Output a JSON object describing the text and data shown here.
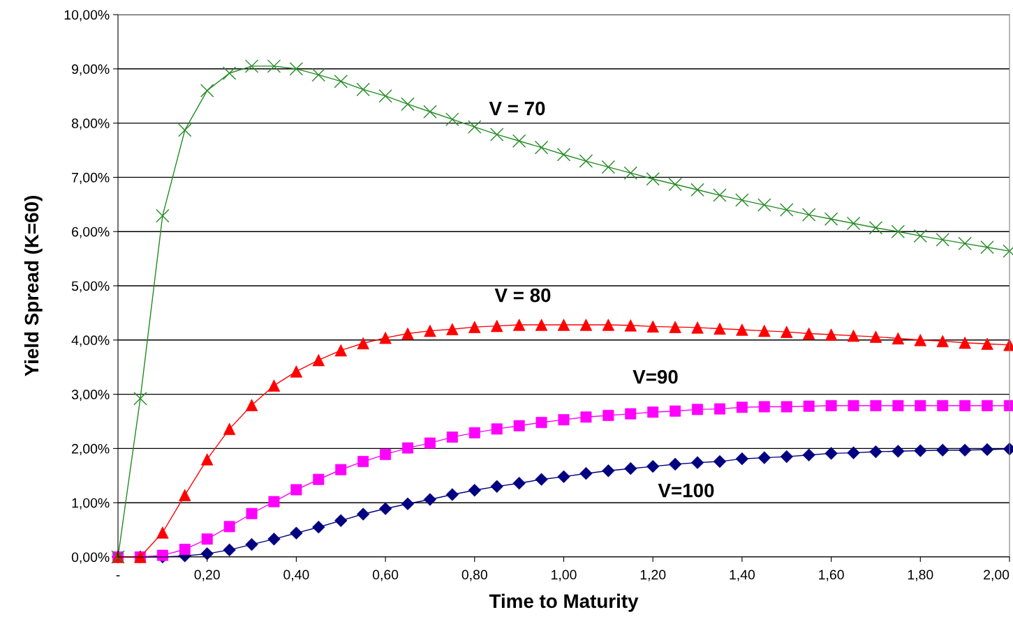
{
  "chart_data": {
    "type": "line",
    "xlabel": "Time to Maturity",
    "ylabel": "Yield Spread (K=60)",
    "x": [
      0,
      0.05,
      0.1,
      0.15,
      0.2,
      0.25,
      0.3,
      0.35,
      0.4,
      0.45,
      0.5,
      0.55,
      0.6,
      0.65,
      0.7,
      0.75,
      0.8,
      0.85,
      0.9,
      0.95,
      1.0,
      1.05,
      1.1,
      1.15,
      1.2,
      1.25,
      1.3,
      1.35,
      1.4,
      1.45,
      1.5,
      1.55,
      1.6,
      1.65,
      1.7,
      1.75,
      1.8,
      1.85,
      1.9,
      1.95,
      2.0
    ],
    "series": [
      {
        "color": "#228b22",
        "marker": "cross",
        "values": [
          0,
          2.92,
          6.29,
          7.87,
          8.6,
          8.92,
          9.05,
          9.05,
          9.0,
          8.89,
          8.77,
          8.62,
          8.5,
          8.35,
          8.21,
          8.07,
          7.93,
          7.79,
          7.67,
          7.55,
          7.42,
          7.3,
          7.19,
          7.08,
          6.97,
          6.87,
          6.77,
          6.67,
          6.58,
          6.49,
          6.4,
          6.31,
          6.23,
          6.15,
          6.07,
          6.0,
          5.92,
          5.85,
          5.78,
          5.71,
          5.64
        ]
      },
      {
        "color": "#ff0000",
        "marker": "triangle",
        "values": [
          0,
          0,
          0.45,
          1.14,
          1.8,
          2.36,
          2.8,
          3.16,
          3.42,
          3.63,
          3.81,
          3.94,
          4.04,
          4.12,
          4.17,
          4.2,
          4.24,
          4.26,
          4.28,
          4.28,
          4.28,
          4.28,
          4.28,
          4.27,
          4.25,
          4.24,
          4.23,
          4.21,
          4.19,
          4.17,
          4.15,
          4.12,
          4.1,
          4.08,
          4.06,
          4.03,
          4.0,
          3.98,
          3.95,
          3.93,
          3.91
        ]
      },
      {
        "color": "#ff00ff",
        "marker": "square",
        "values": [
          0,
          0,
          0.03,
          0.14,
          0.33,
          0.56,
          0.8,
          1.02,
          1.24,
          1.43,
          1.61,
          1.76,
          1.89,
          2.01,
          2.1,
          2.21,
          2.29,
          2.36,
          2.42,
          2.48,
          2.53,
          2.58,
          2.61,
          2.64,
          2.67,
          2.69,
          2.72,
          2.73,
          2.76,
          2.77,
          2.77,
          2.78,
          2.79,
          2.79,
          2.79,
          2.79,
          2.79,
          2.79,
          2.79,
          2.79,
          2.79
        ]
      },
      {
        "color": "#000080",
        "marker": "diamond",
        "values": [
          0,
          0,
          0,
          0.02,
          0.06,
          0.13,
          0.23,
          0.33,
          0.44,
          0.55,
          0.67,
          0.79,
          0.89,
          0.98,
          1.06,
          1.15,
          1.23,
          1.3,
          1.36,
          1.43,
          1.48,
          1.54,
          1.59,
          1.63,
          1.67,
          1.71,
          1.74,
          1.76,
          1.81,
          1.83,
          1.85,
          1.88,
          1.91,
          1.92,
          1.94,
          1.95,
          1.96,
          1.97,
          1.97,
          1.98,
          1.99
        ]
      }
    ],
    "xlim": [
      0,
      2.0
    ],
    "xticks": [
      {
        "value": 0,
        "label": "-"
      },
      {
        "value": 0.2,
        "label": "0,20"
      },
      {
        "value": 0.4,
        "label": "0,40"
      },
      {
        "value": 0.6,
        "label": "0,60"
      },
      {
        "value": 0.8,
        "label": "0,80"
      },
      {
        "value": 1.0,
        "label": "1,00"
      },
      {
        "value": 1.2,
        "label": "1,20"
      },
      {
        "value": 1.4,
        "label": "1,40"
      },
      {
        "value": 1.6,
        "label": "1,60"
      },
      {
        "value": 1.8,
        "label": "1,80"
      },
      {
        "value": 2.0,
        "label": "2,00"
      }
    ],
    "ylim": [
      0,
      10
    ],
    "yticks": [
      {
        "value": 0,
        "label": "0,00%"
      },
      {
        "value": 1,
        "label": "1,00%"
      },
      {
        "value": 2,
        "label": "2,00%"
      },
      {
        "value": 3,
        "label": "3,00%"
      },
      {
        "value": 4,
        "label": "4,00%"
      },
      {
        "value": 5,
        "label": "5,00%"
      },
      {
        "value": 6,
        "label": "6,00%"
      },
      {
        "value": 7,
        "label": "7,00%"
      },
      {
        "value": 8,
        "label": "8,00%"
      },
      {
        "value": 9,
        "label": "9,00%"
      },
      {
        "value": 10,
        "label": "10,00%"
      }
    ],
    "grid": "y",
    "legend": false,
    "line_style": "solid",
    "annotations": [
      "V = 70",
      "V = 80",
      "V=90",
      "V=100"
    ]
  }
}
